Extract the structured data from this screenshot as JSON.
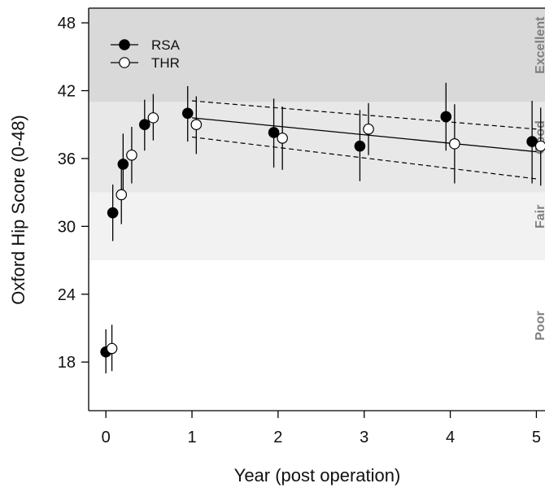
{
  "chart_data": {
    "type": "scatter",
    "title": "",
    "xlabel": "Year (post operation)",
    "ylabel": "Oxford Hip Score (0-48)",
    "xlim": [
      -0.2,
      5.1
    ],
    "ylim": [
      13.7,
      49.3
    ],
    "x_ticks": [
      0,
      1,
      2,
      3,
      4,
      5
    ],
    "y_ticks": [
      18,
      24,
      30,
      36,
      42,
      48
    ],
    "grid": false,
    "legend_position": "top-left",
    "bands": [
      {
        "label": "Excellent",
        "from": 41,
        "to": 49.3,
        "color": "#d9d9d9"
      },
      {
        "label": "Good",
        "from": 33,
        "to": 41,
        "color": "#e8e8e8"
      },
      {
        "label": "Fair",
        "from": 27,
        "to": 33,
        "color": "#f2f2f2"
      },
      {
        "label": "Poor",
        "from": 13.7,
        "to": 27,
        "color": "#ffffff"
      }
    ],
    "series": [
      {
        "name": "RSA",
        "marker": "filled-circle",
        "color": "#000000",
        "points": [
          {
            "x": 0.0,
            "y": 18.9,
            "low": 17.0,
            "high": 20.9
          },
          {
            "x": 0.08,
            "y": 31.2,
            "low": 28.7,
            "high": 33.7
          },
          {
            "x": 0.2,
            "y": 35.5,
            "low": 32.6,
            "high": 38.2
          },
          {
            "x": 0.45,
            "y": 39.0,
            "low": 36.7,
            "high": 41.2
          },
          {
            "x": 0.95,
            "y": 40.0,
            "low": 37.5,
            "high": 42.4
          },
          {
            "x": 1.95,
            "y": 38.3,
            "low": 35.2,
            "high": 41.3
          },
          {
            "x": 2.95,
            "y": 37.1,
            "low": 34.0,
            "high": 40.3
          },
          {
            "x": 3.95,
            "y": 39.7,
            "low": 36.7,
            "high": 42.7
          },
          {
            "x": 4.95,
            "y": 37.5,
            "low": 33.8,
            "high": 41.1
          }
        ]
      },
      {
        "name": "THR",
        "marker": "open-circle",
        "color": "#000000",
        "points": [
          {
            "x": 0.07,
            "y": 19.2,
            "low": 17.2,
            "high": 21.3
          },
          {
            "x": 0.18,
            "y": 32.8,
            "low": 30.2,
            "high": 35.3
          },
          {
            "x": 0.3,
            "y": 36.3,
            "low": 33.8,
            "high": 38.8
          },
          {
            "x": 0.55,
            "y": 39.6,
            "low": 37.6,
            "high": 41.7
          },
          {
            "x": 1.05,
            "y": 39.0,
            "low": 36.4,
            "high": 41.5
          },
          {
            "x": 2.05,
            "y": 37.8,
            "low": 35.0,
            "high": 40.6
          },
          {
            "x": 3.05,
            "y": 38.6,
            "low": 36.3,
            "high": 40.9
          },
          {
            "x": 4.05,
            "y": 37.3,
            "low": 33.8,
            "high": 40.8
          },
          {
            "x": 5.05,
            "y": 37.1,
            "low": 33.6,
            "high": 40.5
          }
        ]
      }
    ],
    "trend": {
      "x": [
        1.0,
        5.0
      ],
      "fit": [
        39.6,
        36.6
      ],
      "lower": [
        37.9,
        34.2
      ],
      "upper": [
        41.1,
        38.6
      ]
    }
  }
}
